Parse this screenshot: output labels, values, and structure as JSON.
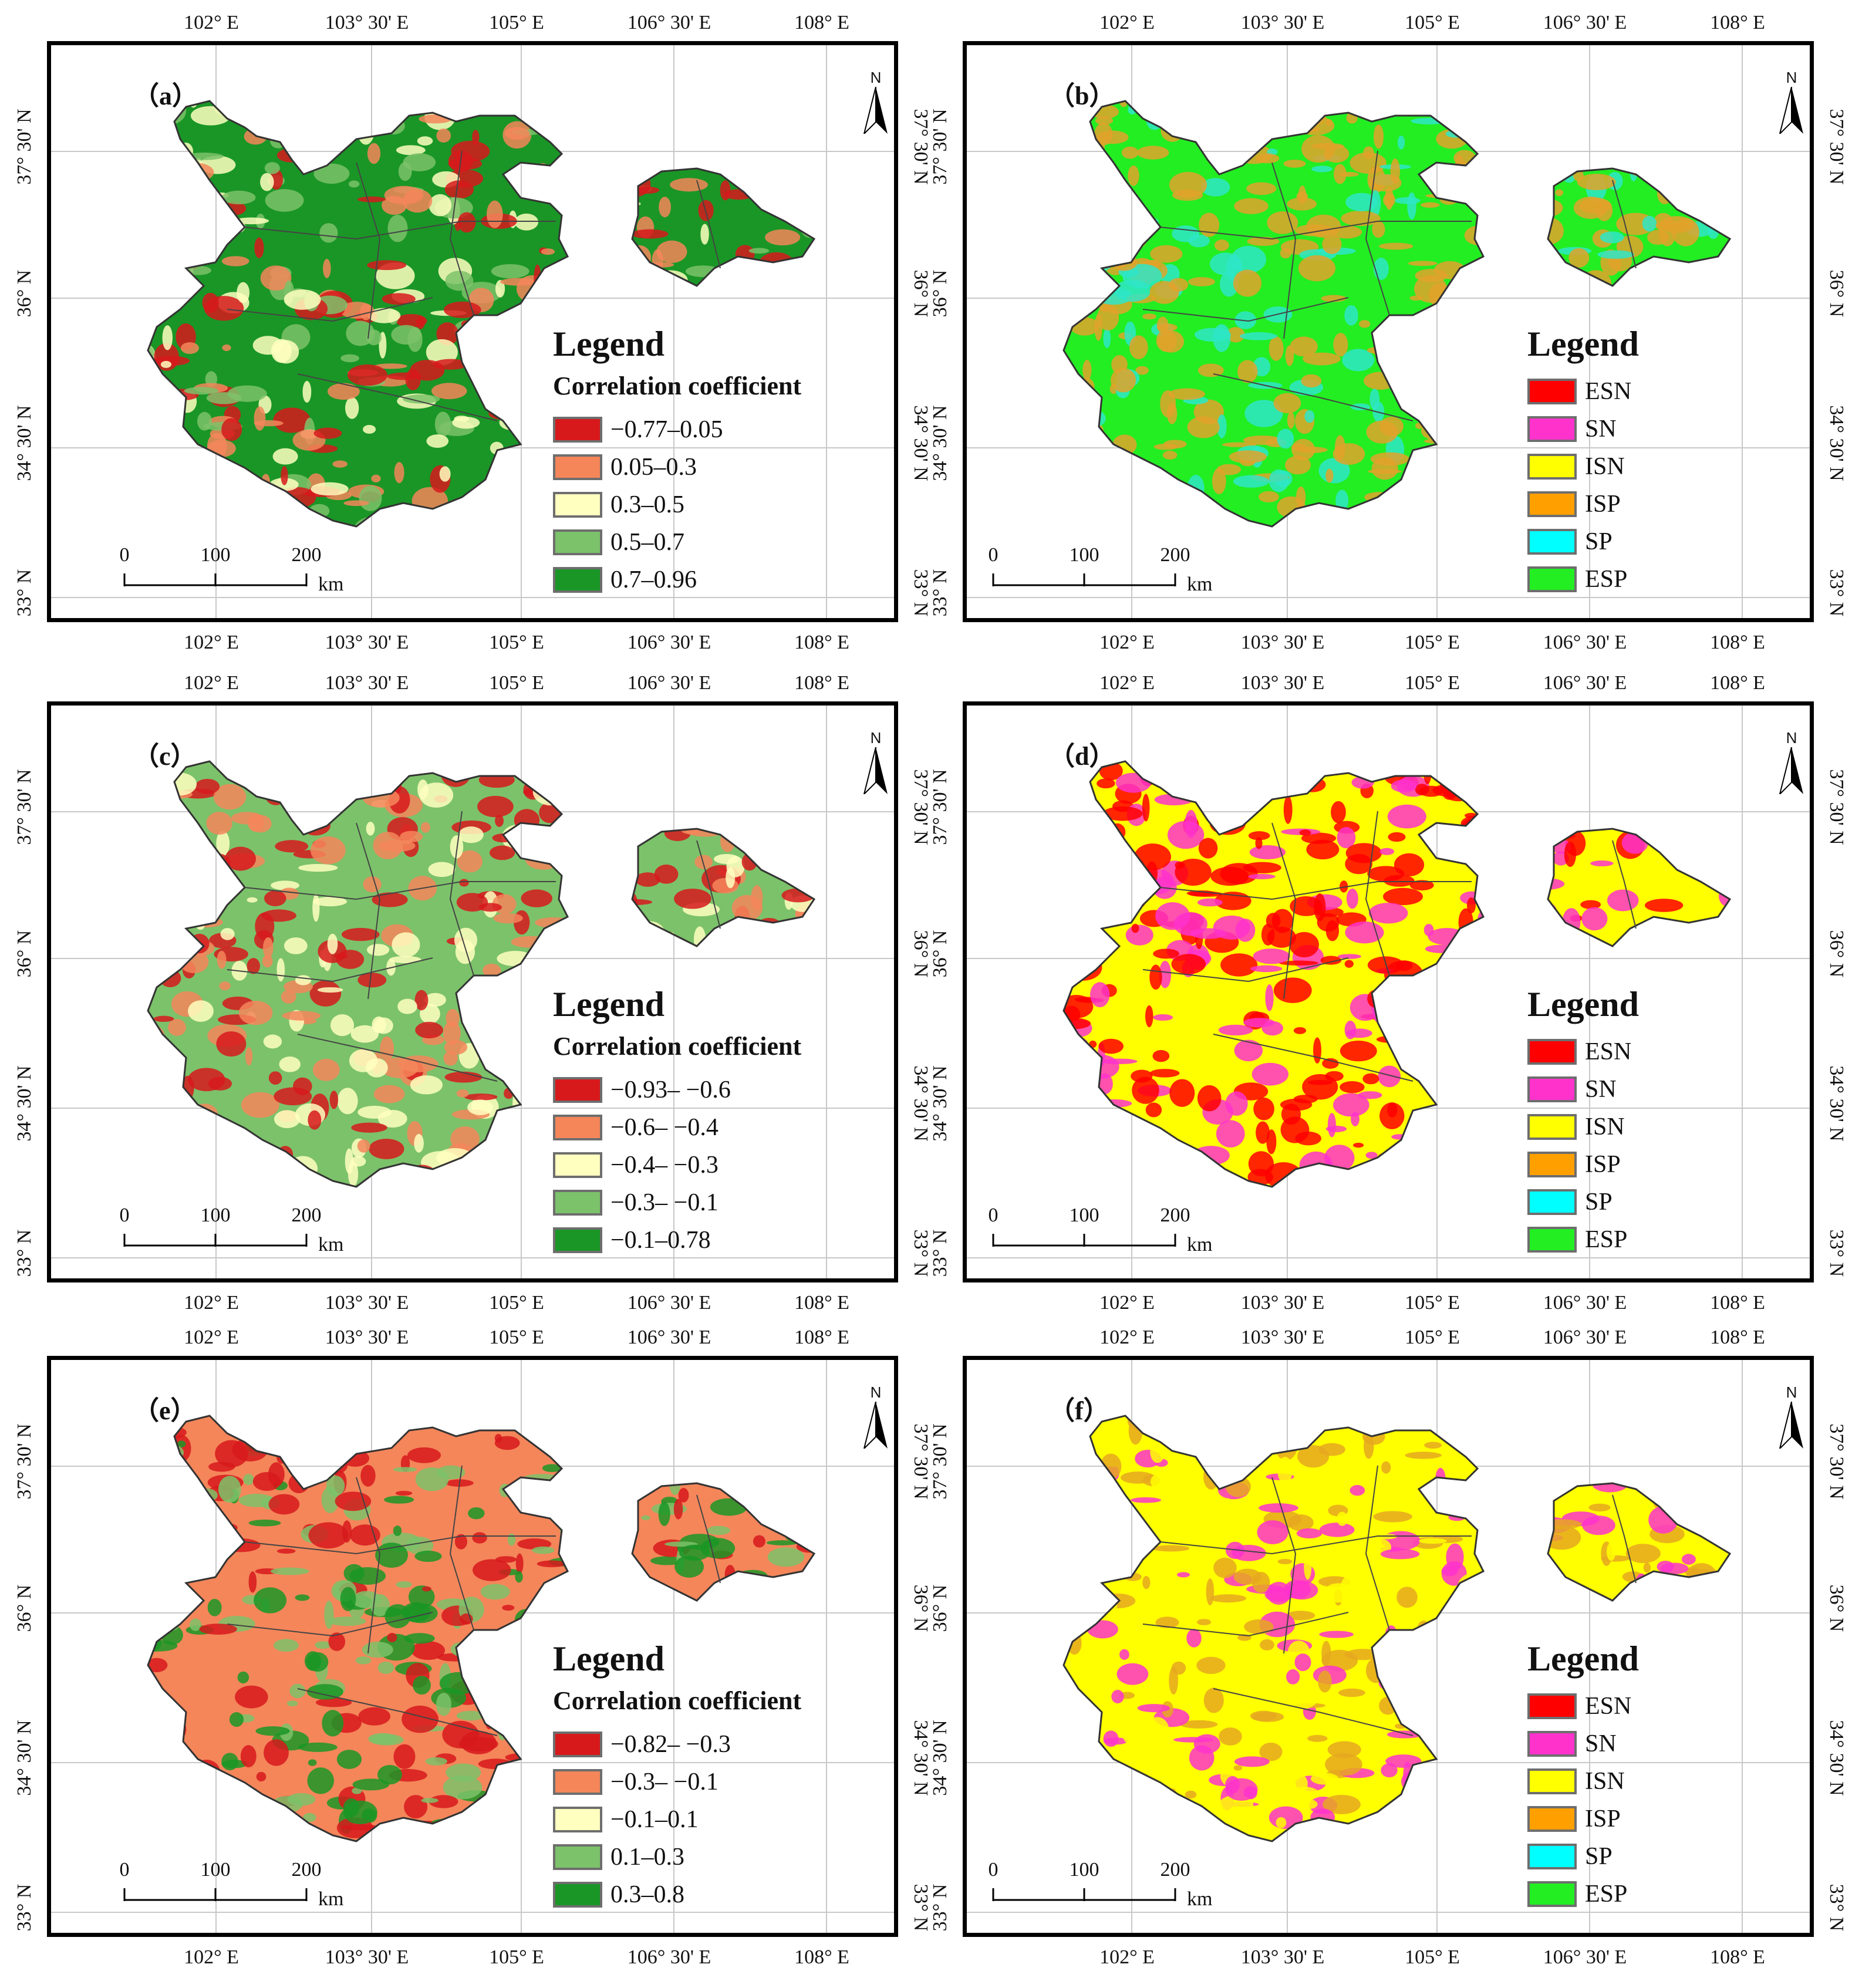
{
  "axes": {
    "lon_ticks": [
      "102° E",
      "103° 30' E",
      "105° E",
      "106° 30' E",
      "108° E"
    ],
    "lat_ticks": [
      "37° 30' N",
      "36° N",
      "34° 30' N",
      "33° N"
    ]
  },
  "north_arrow": {
    "label": "N"
  },
  "scale_bar": {
    "values": [
      "0",
      "100",
      "200"
    ],
    "unit": "km"
  },
  "panels": [
    {
      "id": "a",
      "label": "（a）",
      "legend_title": "Legend",
      "legend_subtitle": "Correlation coefficient",
      "legend_items": [
        {
          "label": "−0.77–0.05",
          "color": "#d7191c"
        },
        {
          "label": "0.05–0.3",
          "color": "#f4865a"
        },
        {
          "label": "0.3–0.5",
          "color": "#ffffc0"
        },
        {
          "label": "0.5–0.7",
          "color": "#7cc26a"
        },
        {
          "label": "0.7–0.96",
          "color": "#1a9626"
        }
      ],
      "palette": [
        "#1a9626",
        "#7cc26a",
        "#ffffc0",
        "#f4865a",
        "#d7191c"
      ]
    },
    {
      "id": "b",
      "label": "（b）",
      "legend_title": "Legend",
      "legend_items": [
        {
          "label": "ESN",
          "color": "#ff0000"
        },
        {
          "label": "SN",
          "color": "#ff33cc"
        },
        {
          "label": "ISN",
          "color": "#ffff00"
        },
        {
          "label": "ISP",
          "color": "#ffa000"
        },
        {
          "label": "SP",
          "color": "#00ffff"
        },
        {
          "label": "ESP",
          "color": "#22ee22"
        }
      ],
      "palette": [
        "#22ee22",
        "#e2a22a",
        "#2ee6c8",
        "#e2a22a"
      ]
    },
    {
      "id": "c",
      "label": "（c）",
      "legend_title": "Legend",
      "legend_subtitle": "Correlation coefficient",
      "legend_items": [
        {
          "label": "−0.93– −0.6",
          "color": "#d7191c"
        },
        {
          "label": "−0.6– −0.4",
          "color": "#f4865a"
        },
        {
          "label": "−0.4– −0.3",
          "color": "#ffffc0"
        },
        {
          "label": "−0.3– −0.1",
          "color": "#7cc26a"
        },
        {
          "label": "−0.1–0.78",
          "color": "#1a9626"
        }
      ],
      "palette": [
        "#7cc26a",
        "#d7191c",
        "#f4865a",
        "#ffffc0"
      ]
    },
    {
      "id": "d",
      "label": "（d）",
      "legend_title": "Legend",
      "legend_items": [
        {
          "label": "ESN",
          "color": "#ff0000"
        },
        {
          "label": "SN",
          "color": "#ff33cc"
        },
        {
          "label": "ISN",
          "color": "#ffff00"
        },
        {
          "label": "ISP",
          "color": "#ffa000"
        },
        {
          "label": "SP",
          "color": "#00ffff"
        },
        {
          "label": "ESP",
          "color": "#22ee22"
        }
      ],
      "palette": [
        "#ffff00",
        "#ff0000",
        "#ff33cc",
        "#ff0000"
      ]
    },
    {
      "id": "e",
      "label": "（e）",
      "legend_title": "Legend",
      "legend_subtitle": "Correlation coefficient",
      "legend_items": [
        {
          "label": "−0.82– −0.3",
          "color": "#d7191c"
        },
        {
          "label": "−0.3– −0.1",
          "color": "#f4865a"
        },
        {
          "label": "−0.1–0.1",
          "color": "#ffffc0"
        },
        {
          "label": "0.1–0.3",
          "color": "#7cc26a"
        },
        {
          "label": "0.3–0.8",
          "color": "#1a9626"
        }
      ],
      "palette": [
        "#f4865a",
        "#7cc26a",
        "#1a9626",
        "#d7191c"
      ]
    },
    {
      "id": "f",
      "label": "（f）",
      "legend_title": "Legend",
      "legend_items": [
        {
          "label": "ESN",
          "color": "#ff0000"
        },
        {
          "label": "SN",
          "color": "#ff33cc"
        },
        {
          "label": "ISN",
          "color": "#ffff00"
        },
        {
          "label": "ISP",
          "color": "#ffa000"
        },
        {
          "label": "SP",
          "color": "#00ffff"
        },
        {
          "label": "ESP",
          "color": "#22ee22"
        }
      ],
      "palette": [
        "#ffff00",
        "#e6a820",
        "#ff33cc",
        "#ffff00"
      ]
    }
  ]
}
